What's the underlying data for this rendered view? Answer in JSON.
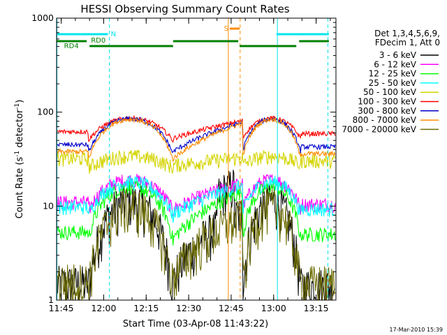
{
  "chart_data": {
    "type": "line",
    "title": "HESSI Observing Summary Count Rates",
    "xlabel": "Start Time (03-Apr-08 11:43:22)",
    "ylabel_main": "Count Rate (s",
    "ylabel_sup1": "-1",
    "ylabel_mid": " detector",
    "ylabel_sup2": "-1",
    "ylabel_end": ")",
    "yscale": "log",
    "ylim": [
      1,
      1000
    ],
    "xlim": [
      "11:43:22",
      "13:22:00"
    ],
    "x_ticks": [
      "11:45",
      "12:00",
      "12:15",
      "12:30",
      "12:45",
      "13:00",
      "13:15"
    ],
    "y_ticks": [
      "1",
      "10",
      "100",
      "1000"
    ],
    "legend_header": [
      "Det 1,3,4,5,6,9,",
      "FDecim 1, Att 0"
    ],
    "legend_position": "right",
    "timestamp": "17-Mar-2010 15:39",
    "series": [
      {
        "name": "3 - 6 keV",
        "color": "#000000",
        "night_level": 1.5,
        "orbit_peak": 11.5
      },
      {
        "name": "6 - 12 keV",
        "color": "#ff00ff",
        "night_level": 11,
        "orbit_peak": 19
      },
      {
        "name": "12 - 25 keV",
        "color": "#00ff00",
        "night_level": 5.3,
        "orbit_peak": 16
      },
      {
        "name": "25 - 50 keV",
        "color": "#00ffff",
        "night_level": 9.8,
        "orbit_peak": 18
      },
      {
        "name": "50 - 100 keV",
        "color": "#d4d400",
        "night_level": 32,
        "orbit_peak": 34
      },
      {
        "name": "100 - 300 keV",
        "color": "#ff0000",
        "night_level": 62,
        "orbit_peak": 86
      },
      {
        "name": "300 - 800 keV",
        "color": "#0000cc",
        "night_level": 45,
        "orbit_peak": 85
      },
      {
        "name": "800 - 7000 keV",
        "color": "#ff8c00",
        "night_level": 38,
        "orbit_peak": 84
      },
      {
        "name": "7000 - 20000 keV",
        "color": "#6b6b00",
        "night_level": 1.6,
        "orbit_peak": 10
      }
    ],
    "flags": [
      {
        "label": "N",
        "color": "#00e5ee",
        "segments": [
          [
            "11:43:22",
            "12:01:30"
          ],
          [
            "13:01:00",
            "13:19:30"
          ]
        ]
      },
      {
        "label": "S",
        "color": "#ff8c00",
        "segments": [
          [
            "12:44:30",
            "12:48:00"
          ]
        ]
      },
      {
        "label": "RD0",
        "color": "#008000",
        "segments": [
          [
            "11:43:22",
            "11:54:00"
          ],
          [
            "12:24:30",
            "12:47:30"
          ],
          [
            "13:09:00",
            "13:19:30"
          ]
        ]
      },
      {
        "label": "RD4",
        "color": "#008000",
        "segments": [
          [
            "11:55:00",
            "12:24:30"
          ],
          [
            "12:48:00",
            "13:08:00"
          ]
        ]
      }
    ],
    "vertical_markers": [
      {
        "time": "11:43:30",
        "color": "#00e5ee",
        "style": "solid"
      },
      {
        "time": "12:02:00",
        "color": "#00e5ee",
        "style": "dashed"
      },
      {
        "time": "12:44:00",
        "color": "#ff8c00",
        "style": "solid"
      },
      {
        "time": "12:48:10",
        "color": "#ff8c00",
        "style": "dashed"
      },
      {
        "time": "13:01:20",
        "color": "#00e5ee",
        "style": "solid"
      },
      {
        "time": "13:19:10",
        "color": "#00e5ee",
        "style": "dashed"
      }
    ]
  }
}
